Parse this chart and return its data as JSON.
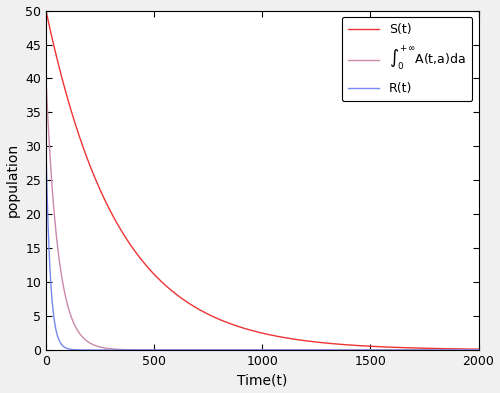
{
  "title": "",
  "xlabel": "Time(t)",
  "ylabel": "population",
  "xlim": [
    0,
    2000
  ],
  "ylim": [
    0,
    50
  ],
  "yticks": [
    0,
    5,
    10,
    15,
    20,
    25,
    30,
    35,
    40,
    45,
    50
  ],
  "xticks": [
    0,
    500,
    1000,
    1500,
    2000
  ],
  "S0": 50,
  "A_int0": 40,
  "R0": 30,
  "decay_S": 0.003,
  "decay_A": 0.018,
  "decay_R": 0.05,
  "color_S": "#EE3333",
  "color_A": "#CC88AA",
  "color_R": "#7788EE",
  "linewidth": 1.0,
  "legend_S": "S(t)",
  "legend_A": "$\\int_0^{+\\infty}$A(t,a)da",
  "legend_R": "R(t)",
  "bg_color": "#F0F0F0",
  "plot_bg": "#FFFFFF",
  "figsize": [
    5.0,
    3.93
  ],
  "dpi": 100
}
